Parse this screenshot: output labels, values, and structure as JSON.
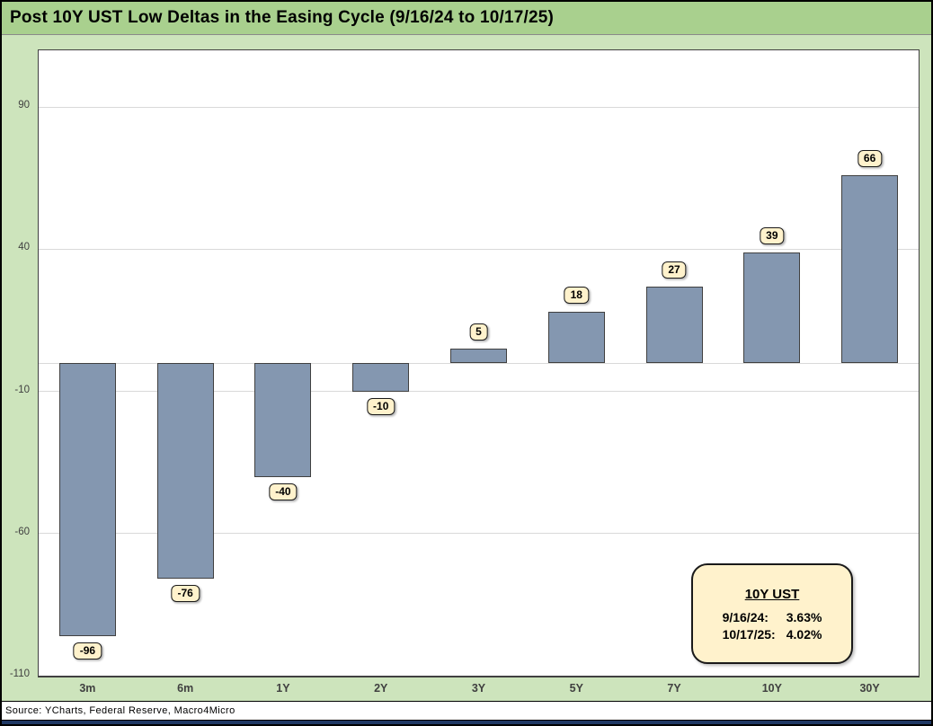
{
  "title": "Post 10Y UST Low Deltas in the Easing Cycle (9/16/24 to 10/17/25)",
  "source": "Source: YCharts, Federal Reserve, Macro4Micro",
  "colors": {
    "title_bar": "#A9D08E",
    "body": "#CDE4BC",
    "bar_fill": "#8497B0",
    "bar_border": "#404040",
    "label_box": "#FFF2CC",
    "grid": "#D9D9D9",
    "tick_text": "#404040",
    "bottom_strip": "#1F3864"
  },
  "legend": {
    "title": "10Y UST",
    "rows": [
      {
        "label": "9/16/24:",
        "value": "3.63%"
      },
      {
        "label": "10/17/25:",
        "value": "4.02%"
      }
    ]
  },
  "chart_data": {
    "type": "bar",
    "title": "Post 10Y UST Low Deltas in the Easing Cycle (9/16/24 to 10/17/25)",
    "categories": [
      "3m",
      "6m",
      "1Y",
      "2Y",
      "3Y",
      "5Y",
      "7Y",
      "10Y",
      "30Y"
    ],
    "values": [
      -96,
      -76,
      -40,
      -10,
      5,
      18,
      27,
      39,
      66
    ],
    "data_labels": [
      -96,
      -76,
      -40,
      -10,
      5,
      18,
      27,
      39,
      66
    ],
    "xlabel": "",
    "ylabel": "",
    "yticks": [
      90,
      40,
      -10,
      -60,
      -110
    ],
    "ylim": [
      -110,
      110
    ],
    "grid": true,
    "zero_baseline": true,
    "legend_position": "bottom-right"
  }
}
